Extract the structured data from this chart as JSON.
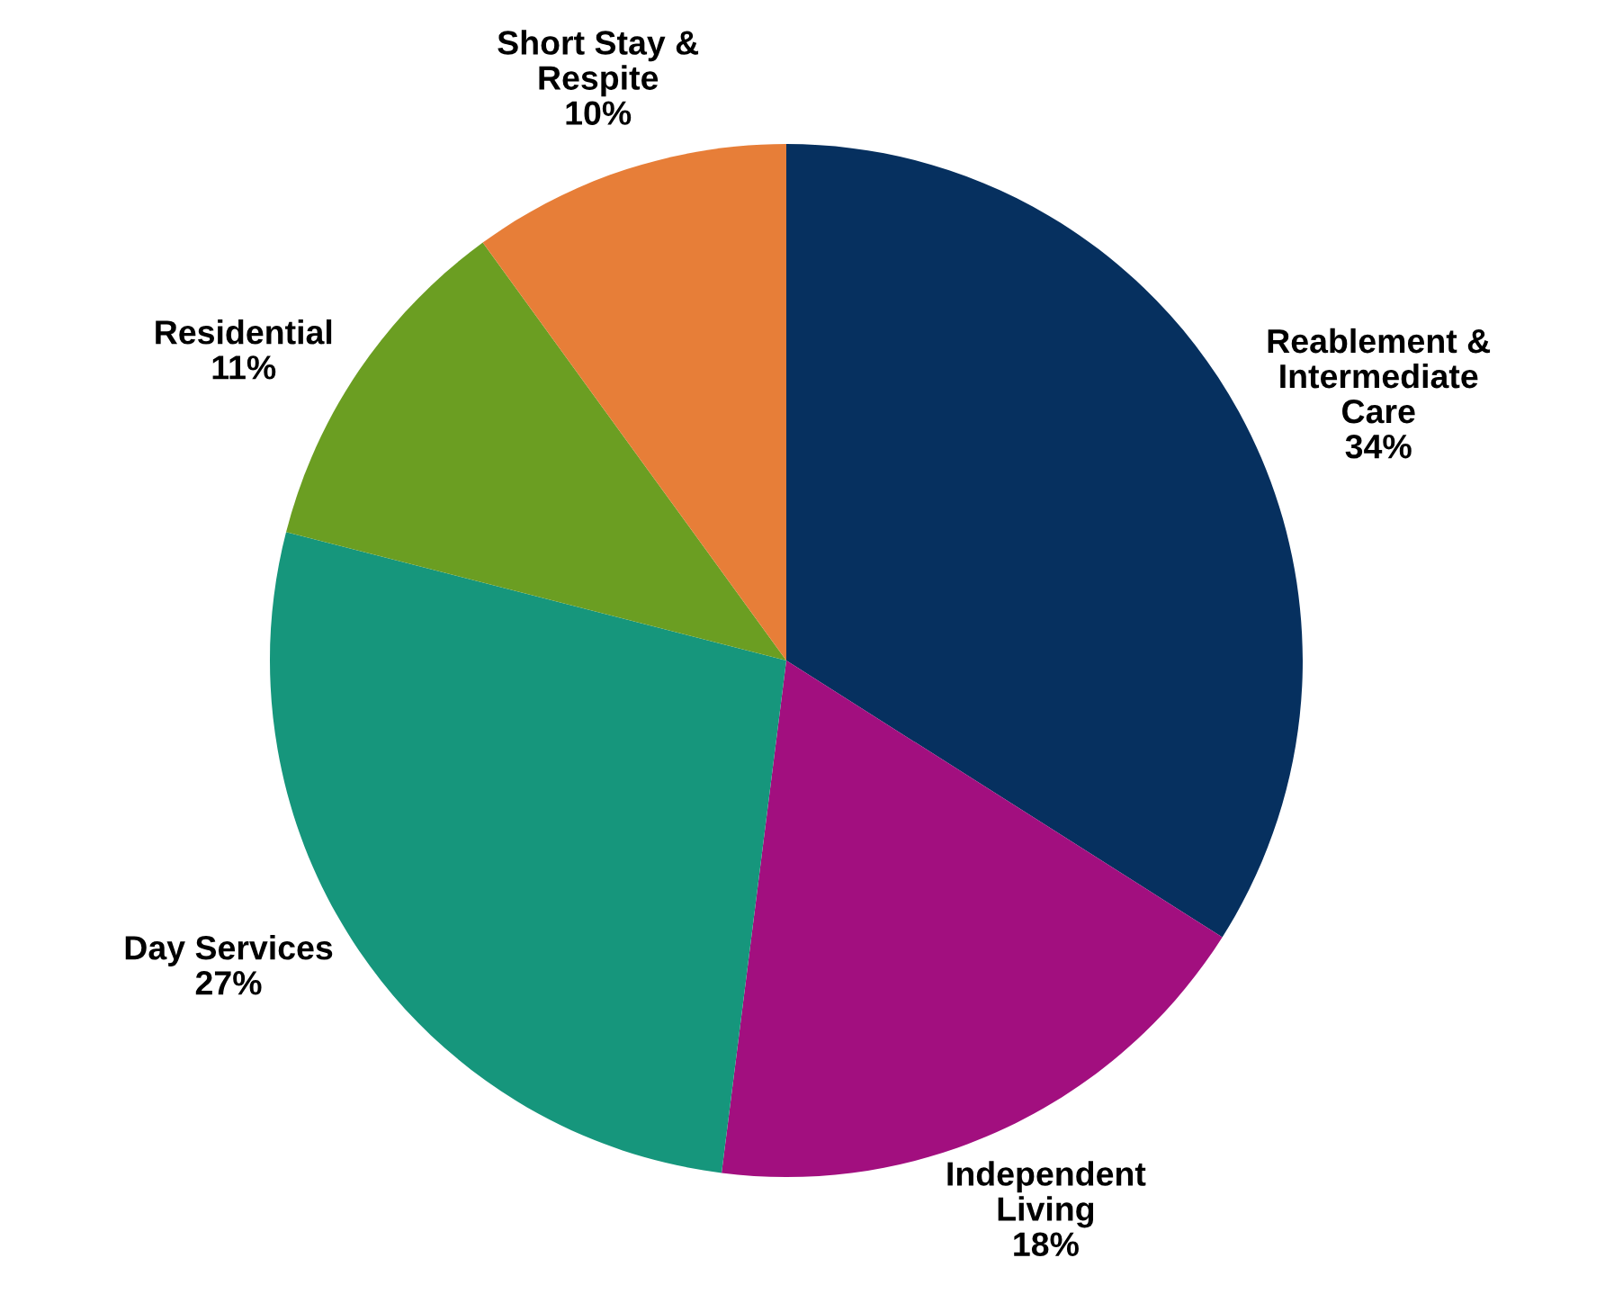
{
  "chart_data": {
    "type": "pie",
    "categories": [
      "Reablement & Intermediate Care",
      "Independent Living",
      "Day Services",
      "Residential",
      "Short Stay & Respite"
    ],
    "values": [
      34,
      18,
      27,
      11,
      10
    ],
    "colors": [
      "#06305f",
      "#a20f7f",
      "#16967c",
      "#6b9e22",
      "#e77e38"
    ],
    "value_labels": [
      "34%",
      "18%",
      "27%",
      "11%",
      "10%"
    ],
    "legend": false
  }
}
